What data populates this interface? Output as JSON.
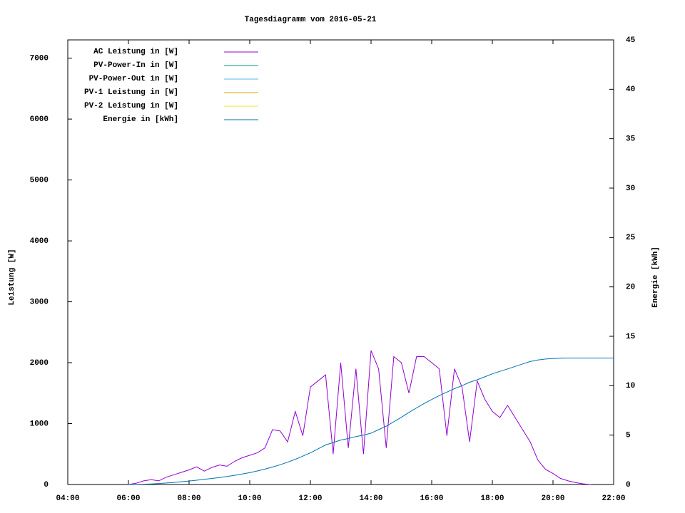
{
  "chart_data": {
    "type": "line",
    "title": "Tagesdiagramm vom 2016-05-21",
    "y_label": "Leistung [W]",
    "y2_label": "Energie [kWh]",
    "x": [
      "06:00",
      "06:15",
      "06:30",
      "06:45",
      "07:00",
      "07:15",
      "07:30",
      "07:45",
      "08:00",
      "08:15",
      "08:30",
      "08:45",
      "09:00",
      "09:15",
      "09:30",
      "09:45",
      "10:00",
      "10:15",
      "10:30",
      "10:45",
      "11:00",
      "11:15",
      "11:30",
      "11:45",
      "12:00",
      "12:15",
      "12:30",
      "12:45",
      "13:00",
      "13:15",
      "13:30",
      "13:45",
      "14:00",
      "14:15",
      "14:30",
      "14:45",
      "15:00",
      "15:15",
      "15:30",
      "15:45",
      "16:00",
      "16:15",
      "16:30",
      "16:45",
      "17:00",
      "17:15",
      "17:30",
      "17:45",
      "18:00",
      "18:15",
      "18:30",
      "18:45",
      "19:00",
      "19:15",
      "19:30",
      "19:45",
      "20:00",
      "20:15",
      "20:30",
      "20:45",
      "21:00",
      "21:15",
      "21:30",
      "21:45",
      "22:00"
    ],
    "xlim": [
      "04:00",
      "22:00"
    ],
    "xticks": [
      "04:00",
      "06:00",
      "08:00",
      "10:00",
      "12:00",
      "14:00",
      "16:00",
      "18:00",
      "20:00",
      "22:00"
    ],
    "ylim": [
      0,
      7300
    ],
    "yticks": [
      0,
      1000,
      2000,
      3000,
      4000,
      5000,
      6000,
      7000
    ],
    "y2lim": [
      0,
      45
    ],
    "y2ticks": [
      0,
      5,
      10,
      15,
      20,
      25,
      30,
      35,
      40,
      45
    ],
    "legend": "upper-left",
    "series": [
      {
        "name": "AC Leistung in [W]",
        "color": "#9400d3",
        "values": [
          0,
          20,
          60,
          80,
          60,
          120,
          160,
          200,
          240,
          290,
          220,
          280,
          320,
          300,
          380,
          440,
          480,
          520,
          600,
          900,
          880,
          700,
          1200,
          800,
          1600,
          1700,
          1800,
          500,
          2000,
          600,
          1900,
          500,
          2200,
          1900,
          600,
          2100,
          2000,
          1500,
          2100,
          2100,
          2000,
          1900,
          800,
          1900,
          1600,
          700,
          1700,
          1400,
          1200,
          1100,
          1300,
          1100,
          900,
          700,
          400,
          250,
          180,
          100,
          60,
          30,
          10,
          0,
          null,
          null,
          null
        ]
      },
      {
        "name": "PV-Power-In in [W]",
        "color": "#009e73",
        "values": [
          null,
          null,
          null,
          null,
          null,
          null,
          null,
          null,
          null,
          null,
          null,
          null,
          null,
          null,
          null,
          null,
          null,
          null,
          null,
          null,
          null,
          null,
          null,
          null,
          null,
          null,
          null,
          null,
          null,
          null,
          null,
          null,
          null,
          null,
          null,
          null,
          null,
          null,
          null,
          null,
          null,
          null,
          null,
          null,
          null,
          null,
          null,
          null,
          null,
          null,
          null,
          null,
          null,
          null,
          null,
          null,
          null,
          null,
          null,
          null,
          null,
          null,
          null,
          null,
          null
        ]
      },
      {
        "name": "PV-Power-Out in [W]",
        "color": "#56b4e9",
        "values": [
          null,
          null,
          null,
          null,
          null,
          null,
          null,
          null,
          null,
          null,
          null,
          null,
          null,
          null,
          null,
          null,
          null,
          null,
          null,
          null,
          null,
          null,
          null,
          null,
          null,
          null,
          null,
          null,
          null,
          null,
          null,
          null,
          null,
          null,
          null,
          null,
          null,
          null,
          null,
          null,
          null,
          null,
          null,
          null,
          null,
          null,
          null,
          null,
          null,
          null,
          null,
          null,
          null,
          null,
          null,
          null,
          null,
          null,
          null,
          null,
          null,
          null,
          null,
          null,
          null
        ]
      },
      {
        "name": "PV-1 Leistung in [W]",
        "color": "#e69f00",
        "values": [
          null,
          null,
          null,
          null,
          null,
          null,
          null,
          null,
          null,
          null,
          null,
          null,
          null,
          null,
          null,
          null,
          null,
          null,
          null,
          null,
          null,
          null,
          null,
          null,
          null,
          null,
          null,
          null,
          null,
          null,
          null,
          null,
          null,
          null,
          null,
          null,
          null,
          null,
          null,
          null,
          null,
          null,
          null,
          null,
          null,
          null,
          null,
          null,
          null,
          null,
          null,
          null,
          null,
          null,
          null,
          null,
          null,
          null,
          null,
          null,
          null,
          null,
          null,
          null,
          null
        ]
      },
      {
        "name": "PV-2 Leistung in [W]",
        "color": "#f0e442",
        "values": [
          null,
          null,
          null,
          null,
          null,
          null,
          null,
          null,
          null,
          null,
          null,
          null,
          null,
          null,
          null,
          null,
          null,
          null,
          null,
          null,
          null,
          null,
          null,
          null,
          null,
          null,
          null,
          null,
          null,
          null,
          null,
          null,
          null,
          null,
          null,
          null,
          null,
          null,
          null,
          null,
          null,
          null,
          null,
          null,
          null,
          null,
          null,
          null,
          null,
          null,
          null,
          null,
          null,
          null,
          null,
          null,
          null,
          null,
          null,
          null,
          null,
          null,
          null,
          null,
          null
        ]
      },
      {
        "name": "Energie in [kWh]",
        "color": "#0072b2",
        "axis": "y2",
        "values": [
          0,
          0.01,
          0.03,
          0.06,
          0.1,
          0.15,
          0.21,
          0.28,
          0.35,
          0.43,
          0.52,
          0.61,
          0.7,
          0.81,
          0.93,
          1.06,
          1.2,
          1.37,
          1.56,
          1.77,
          2.0,
          2.26,
          2.55,
          2.87,
          3.2,
          3.6,
          4.0,
          4.25,
          4.5,
          4.65,
          4.85,
          5.0,
          5.2,
          5.55,
          5.9,
          6.35,
          6.8,
          7.3,
          7.75,
          8.2,
          8.6,
          9.0,
          9.35,
          9.7,
          10.0,
          10.35,
          10.6,
          10.9,
          11.2,
          11.45,
          11.7,
          11.95,
          12.2,
          12.45,
          12.6,
          12.7,
          12.75,
          12.78,
          12.8,
          12.8,
          12.8,
          12.8,
          12.8,
          12.8,
          12.8
        ]
      }
    ]
  }
}
